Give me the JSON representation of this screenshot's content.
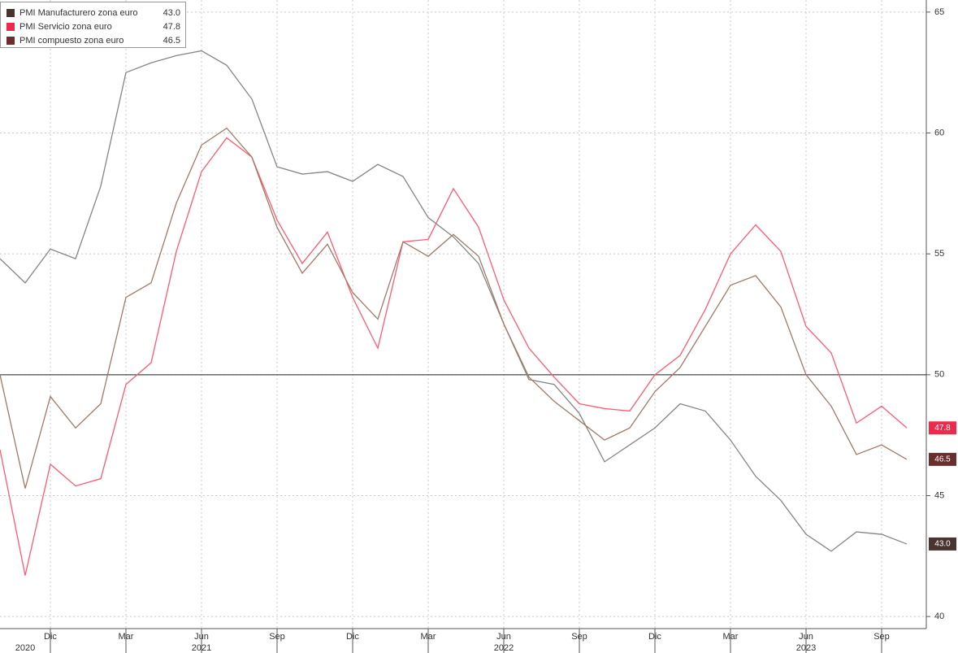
{
  "chart_data": {
    "type": "line",
    "categories": [
      null,
      null,
      "Dic",
      null,
      null,
      "Mar",
      null,
      null,
      "Jun",
      null,
      null,
      "Sep",
      null,
      null,
      "Dic",
      null,
      null,
      "Mar",
      null,
      null,
      "Jun",
      null,
      null,
      "Sep",
      null,
      null,
      "Dic",
      null,
      null,
      "Mar",
      null,
      null,
      "Jun",
      null,
      null,
      "Sep",
      null
    ],
    "year_labels": [
      null,
      "2020",
      null,
      null,
      null,
      null,
      null,
      null,
      "2021",
      null,
      null,
      null,
      null,
      null,
      null,
      null,
      null,
      null,
      null,
      null,
      "2022",
      null,
      null,
      null,
      null,
      null,
      null,
      null,
      null,
      null,
      null,
      null,
      "2023",
      null,
      null,
      null,
      null
    ],
    "series": [
      {
        "name": "PMI Manufacturero zona euro",
        "color": "#858585",
        "label_color": "#4a3431",
        "values": [
          54.8,
          53.8,
          55.2,
          54.8,
          57.8,
          62.5,
          62.9,
          63.2,
          63.4,
          62.8,
          61.4,
          58.6,
          58.3,
          58.4,
          58.0,
          58.7,
          58.2,
          56.5,
          55.7,
          54.6,
          52.1,
          49.8,
          49.6,
          48.4,
          46.4,
          47.1,
          47.8,
          48.8,
          48.5,
          47.3,
          45.8,
          44.8,
          43.4,
          42.7,
          43.5,
          43.4,
          43.0
        ],
        "value_labels": [
          null,
          null,
          null,
          null,
          null,
          null,
          null,
          null,
          null,
          null,
          null,
          null,
          null,
          null,
          null,
          null,
          null,
          null,
          null,
          null,
          null,
          null,
          null,
          null,
          null,
          null,
          null,
          null,
          null,
          null,
          null,
          null,
          null,
          null,
          null,
          null,
          "43.0"
        ]
      },
      {
        "name": "PMI Servicio zona euro",
        "color": "#ff5a72",
        "label_color": "#f0284c",
        "values": [
          46.9,
          41.7,
          46.3,
          45.4,
          45.7,
          49.6,
          50.5,
          55.1,
          58.4,
          59.8,
          59.0,
          56.4,
          54.6,
          55.9,
          53.2,
          51.1,
          55.5,
          55.6,
          57.7,
          56.1,
          53.1,
          51.1,
          49.9,
          48.8,
          48.6,
          48.5,
          50.0,
          50.8,
          52.7,
          55.0,
          56.2,
          55.1,
          52.0,
          50.9,
          48.0,
          48.7,
          47.8
        ],
        "value_labels": [
          null,
          null,
          null,
          null,
          null,
          null,
          null,
          null,
          null,
          null,
          null,
          null,
          null,
          null,
          null,
          null,
          null,
          null,
          null,
          null,
          null,
          null,
          null,
          null,
          null,
          null,
          null,
          null,
          null,
          null,
          null,
          null,
          null,
          null,
          null,
          null,
          "47.8"
        ]
      },
      {
        "name": "PMI compuesto zona euro",
        "color": "#a07a68",
        "label_color": "#6a2e2c",
        "values": [
          50.0,
          45.3,
          49.1,
          47.8,
          48.8,
          53.2,
          53.8,
          57.1,
          59.5,
          60.2,
          59.0,
          56.1,
          54.2,
          55.4,
          53.4,
          52.3,
          55.5,
          54.9,
          55.8,
          54.9,
          52.1,
          49.9,
          48.9,
          48.1,
          47.3,
          47.8,
          49.3,
          50.3,
          52.0,
          53.7,
          54.1,
          52.8,
          50.0,
          48.7,
          46.7,
          47.1,
          46.5
        ],
        "value_labels": [
          null,
          null,
          null,
          null,
          null,
          null,
          null,
          null,
          null,
          null,
          null,
          null,
          null,
          null,
          null,
          null,
          null,
          null,
          null,
          null,
          null,
          null,
          null,
          null,
          null,
          null,
          null,
          null,
          null,
          null,
          null,
          null,
          null,
          null,
          null,
          null,
          "46.5"
        ]
      }
    ],
    "ylim": [
      39.5,
      65.5
    ],
    "yticks": [
      40,
      45,
      50,
      55,
      60,
      65
    ],
    "reference_line": 50,
    "grid": true
  }
}
